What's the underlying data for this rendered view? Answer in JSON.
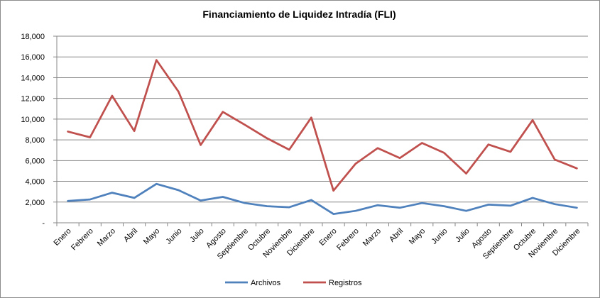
{
  "chart_data": {
    "type": "line",
    "title": "Financiamiento de Liquidez Intradía (FLI)",
    "xlabel": "",
    "ylabel": "",
    "ylim": [
      0,
      18000
    ],
    "yticks": [
      0,
      2000,
      4000,
      6000,
      8000,
      10000,
      12000,
      14000,
      16000,
      18000
    ],
    "ytick_labels": [
      "-",
      "2,000",
      "4,000",
      "6,000",
      "8,000",
      "10,000",
      "12,000",
      "14,000",
      "16,000",
      "18,000"
    ],
    "categories": [
      "Enero",
      "Febrero",
      "Marzo",
      "Abril",
      "Mayo",
      "Junio",
      "Julio",
      "Agosto",
      "Septiembre",
      "Octubre",
      "Noviembre",
      "Diciembre",
      "Enero",
      "Febrero",
      "Marzo",
      "Abril",
      "Mayo",
      "Junio",
      "Julio",
      "Agosto",
      "Septiembre",
      "Octubre",
      "Noviembre",
      "Diciembre"
    ],
    "series": [
      {
        "name": "Archivos",
        "color": "#4f81bd",
        "values": [
          2100,
          2250,
          2900,
          2400,
          3750,
          3150,
          2150,
          2500,
          1900,
          1600,
          1500,
          2200,
          850,
          1150,
          1700,
          1450,
          1900,
          1600,
          1150,
          1750,
          1650,
          2400,
          1800,
          1450
        ]
      },
      {
        "name": "Registros",
        "color": "#c0504d",
        "values": [
          8800,
          8250,
          12250,
          8850,
          15700,
          12650,
          7500,
          10700,
          9450,
          8150,
          7050,
          10150,
          3100,
          5700,
          7200,
          6250,
          7700,
          6750,
          4750,
          7550,
          6850,
          9900,
          6100,
          5250
        ]
      }
    ],
    "grid": true,
    "legend_position": "bottom"
  }
}
